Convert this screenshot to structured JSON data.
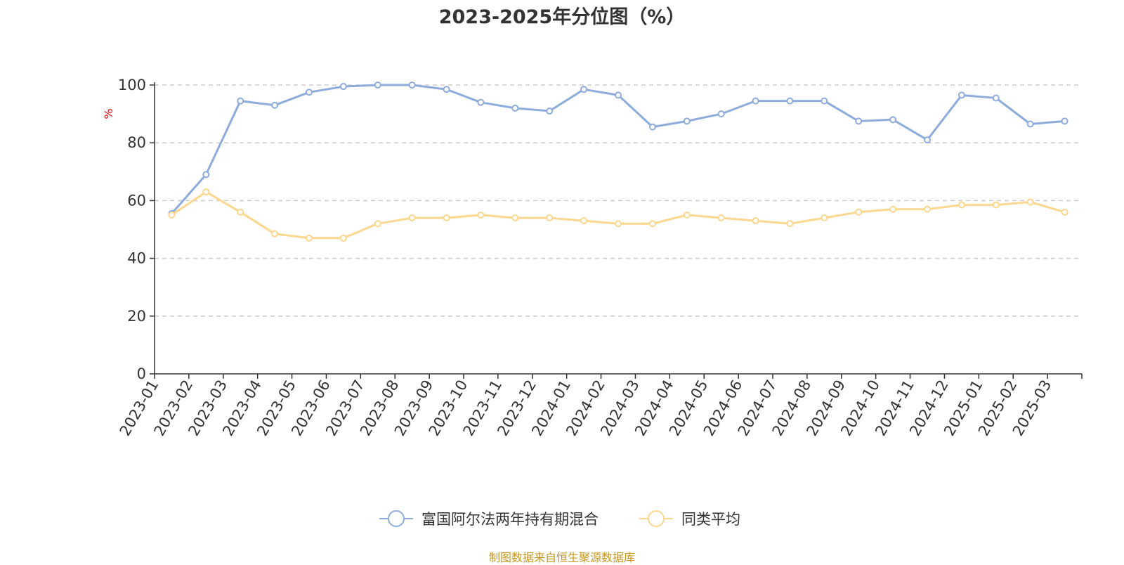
{
  "title": "2023-2025年分位图（%）",
  "source": "制图数据来自恒生聚源数据库",
  "colors": {
    "fund": "#8eacdb",
    "peer": "#fbd78f",
    "ylabel": "#e60000",
    "source": "#c8961e"
  },
  "chart_data": {
    "type": "line",
    "title": "2023-2025年分位图（%）",
    "xlabel": "",
    "ylabel": "%",
    "ylim": [
      0,
      100
    ],
    "yticks": [
      0,
      20,
      40,
      60,
      80,
      100
    ],
    "grid": true,
    "legend_position": "bottom",
    "categories": [
      "2023-01",
      "2023-02",
      "2023-03",
      "2023-04",
      "2023-05",
      "2023-06",
      "2023-07",
      "2023-08",
      "2023-09",
      "2023-10",
      "2023-11",
      "2023-12",
      "2024-01",
      "2024-02",
      "2024-03",
      "2024-04",
      "2024-05",
      "2024-06",
      "2024-07",
      "2024-08",
      "2024-09",
      "2024-10",
      "2024-11",
      "2024-12",
      "2025-01",
      "2025-02",
      "2025-03"
    ],
    "series": [
      {
        "name": "富国阿尔法两年持有期混合",
        "values": [
          55.5,
          69,
          94.5,
          93,
          97.5,
          99.5,
          100,
          100,
          98.5,
          94,
          92,
          91,
          98.5,
          96.5,
          85.5,
          87.5,
          90,
          94.5,
          94.5,
          94.5,
          87.5,
          88,
          81,
          96.5,
          95.5,
          86.5,
          87.5
        ]
      },
      {
        "name": "同类平均",
        "values": [
          55,
          63,
          56,
          48.5,
          47,
          47,
          52,
          54,
          54,
          55,
          54,
          54,
          53,
          52,
          52,
          55,
          54,
          53,
          52,
          54,
          56,
          57,
          57,
          58.5,
          58.5,
          59.5,
          56
        ]
      }
    ]
  }
}
